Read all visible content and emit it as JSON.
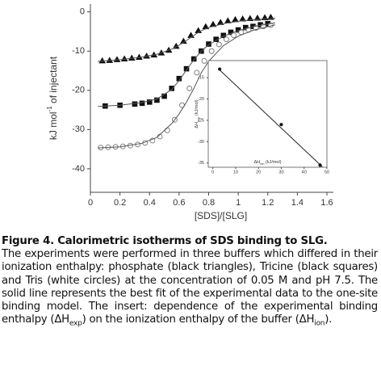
{
  "chart_data": [
    {
      "type": "scatter",
      "ylabel": [
        "kJ mol",
        "-1",
        " of injectant"
      ],
      "xlabel": "[SDS]/[SLG]",
      "xlim": [
        0,
        1.6
      ],
      "xticks": [
        0,
        0.2,
        0.4,
        0.6,
        0.8,
        1,
        1.2,
        1.4,
        1.6
      ],
      "ylim": [
        -46,
        2
      ],
      "yticks": [
        0,
        -10,
        -20,
        -30,
        -40
      ],
      "series": [
        {
          "marker": "triangle",
          "color": "#111111",
          "fill": "#111111",
          "x": [
            0.08,
            0.13,
            0.18,
            0.23,
            0.28,
            0.33,
            0.38,
            0.43,
            0.48,
            0.53,
            0.58,
            0.63,
            0.68,
            0.73,
            0.78,
            0.83,
            0.88,
            0.93,
            0.98,
            1.03,
            1.08,
            1.13,
            1.18,
            1.22
          ],
          "values": [
            -12.5,
            -12.4,
            -12.2,
            -12,
            -11.8,
            -11.6,
            -11.3,
            -11,
            -10.5,
            -9.8,
            -8.8,
            -7.5,
            -6,
            -4.8,
            -3.8,
            -3.2,
            -2.7,
            -2.3,
            -2,
            -1.8,
            -1.7,
            -1.6,
            -1.5,
            -1.4
          ]
        },
        {
          "marker": "square",
          "color": "#111111",
          "fill": "#111111",
          "x": [
            0.1,
            0.2,
            0.3,
            0.35,
            0.4,
            0.45,
            0.5,
            0.55,
            0.6,
            0.65,
            0.7,
            0.75,
            0.8,
            0.85,
            0.9,
            0.95,
            1.0,
            1.05,
            1.1,
            1.15,
            1.2
          ],
          "values": [
            -24,
            -23.8,
            -23.5,
            -23.3,
            -23,
            -22.5,
            -21.5,
            -19.5,
            -17,
            -14.5,
            -12,
            -10,
            -8.2,
            -7,
            -6,
            -5.2,
            -4.6,
            -4,
            -3.7,
            -3.3,
            -3
          ]
        },
        {
          "marker": "circle",
          "color": "#777777",
          "fill": "#ffffff",
          "x": [
            0.07,
            0.12,
            0.17,
            0.22,
            0.27,
            0.32,
            0.37,
            0.42,
            0.47,
            0.52,
            0.57,
            0.62,
            0.67,
            0.72,
            0.77,
            0.82,
            0.87,
            0.92,
            0.97,
            1.02,
            1.07,
            1.12,
            1.17,
            1.22
          ],
          "values": [
            -34.6,
            -34.5,
            -34.4,
            -34.3,
            -34.1,
            -33.8,
            -33.4,
            -32.8,
            -31.8,
            -30.2,
            -27.5,
            -23.8,
            -19.5,
            -15.5,
            -12.5,
            -10,
            -8.3,
            -7,
            -6,
            -5.2,
            -4.6,
            -4.1,
            -3.7,
            -3.4
          ]
        },
        {
          "marker": "line",
          "color": "#555555",
          "x": [
            0.05,
            0.2,
            0.35,
            0.45,
            0.55,
            0.6,
            0.65,
            0.7,
            0.75,
            0.8,
            0.9,
            1.0,
            1.1,
            1.25
          ],
          "values": [
            -12.6,
            -12.2,
            -11.5,
            -10.8,
            -9.5,
            -8.5,
            -7.3,
            -6,
            -4.8,
            -4,
            -3,
            -2.4,
            -2,
            -1.6
          ]
        },
        {
          "marker": "line",
          "color": "#555555",
          "x": [
            0.05,
            0.2,
            0.35,
            0.45,
            0.55,
            0.6,
            0.65,
            0.7,
            0.75,
            0.8,
            0.9,
            1.0,
            1.1,
            1.25
          ],
          "values": [
            -24.1,
            -23.8,
            -23.1,
            -22.2,
            -19.8,
            -17.5,
            -14.8,
            -12.2,
            -10,
            -8.4,
            -6.2,
            -4.8,
            -3.8,
            -2.8
          ]
        },
        {
          "marker": "line",
          "color": "#555555",
          "x": [
            0.05,
            0.2,
            0.35,
            0.45,
            0.55,
            0.6,
            0.65,
            0.7,
            0.75,
            0.8,
            0.9,
            1.0,
            1.1,
            1.25
          ],
          "values": [
            -34.7,
            -34.4,
            -33.5,
            -32,
            -28.5,
            -26,
            -23,
            -19.5,
            -15.5,
            -12.6,
            -8.6,
            -6.2,
            -4.7,
            -3.3
          ]
        }
      ]
    },
    {
      "type": "scatter",
      "ylabel": [
        "ΔH",
        "exp",
        " (kJ/mol)"
      ],
      "xlabel": [
        "ΔH",
        "ion",
        " (kJ/mol)"
      ],
      "xlim": [
        -2,
        50
      ],
      "xticks": [
        0,
        10,
        20,
        30,
        40,
        50
      ],
      "ylim": [
        -36,
        -11
      ],
      "yticks": [
        -15,
        -20,
        -25,
        -30,
        -35
      ],
      "series": [
        {
          "marker": "line",
          "color": "#222222",
          "x": [
            3,
            48
          ],
          "values": [
            -13.2,
            -35.9
          ]
        },
        {
          "marker": "dot",
          "color": "#111111",
          "fill": "#111111",
          "x": [
            3,
            30,
            47
          ],
          "values": [
            -13,
            -26,
            -35.5
          ]
        }
      ]
    }
  ],
  "caption": {
    "title": "Figure 4. Calorimetric isotherms of SDS binding to SLG.",
    "body": [
      "The experiments were performed in three buffers which differed in their ionization enthalpy: phosphate (black triangles), Tricine (black squares) and Tris (white circles) at the concentration of 0.05 M and pH 7.5. The solid line represents the best fit of the experimental data to the one-site binding model. The insert: dependence of the experimental binding enthalpy (ΔH",
      "exp",
      ") on the ionization enthalpy of the buffer (ΔH",
      "ion",
      ")."
    ]
  }
}
